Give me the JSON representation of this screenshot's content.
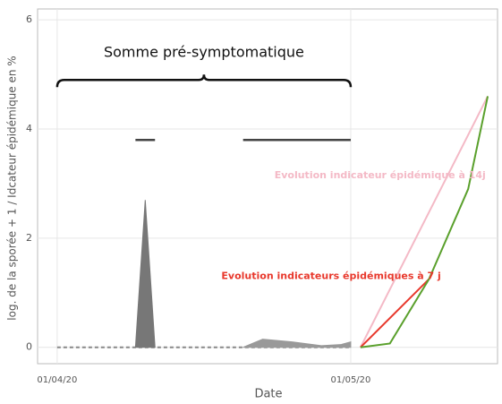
{
  "chart_data": {
    "type": "line",
    "x_label": "Date",
    "y_label": "log. de la sporée + 1 / Idcateur épidémique en %",
    "xlim": [
      "30/03/20",
      "16/05/20"
    ],
    "xticks": [
      "01/04/20",
      "01/05/20"
    ],
    "ylim": [
      -0.3,
      6.2
    ],
    "yticks": [
      0,
      2,
      4,
      6
    ],
    "grid": true,
    "series": [
      {
        "color": "#888888",
        "dashed": true,
        "fill": false,
        "x": [
          "01/04/20",
          "01/05/20"
        ],
        "values": [
          0,
          0
        ]
      },
      {
        "color": "#777777",
        "dashed": false,
        "fill": true,
        "x": [
          "09/04/20",
          "10/04/20",
          "11/04/20"
        ],
        "values": [
          0,
          2.7,
          0
        ]
      },
      {
        "color": "#999999",
        "dashed": false,
        "fill": true,
        "x": [
          "20/04/20",
          "22/04/20",
          "25/04/20",
          "28/04/20",
          "30/04/20",
          "01/05/20"
        ],
        "values": [
          0,
          0.15,
          0.1,
          0.03,
          0.05,
          0.1
        ]
      },
      {
        "color": "#f4b9c6",
        "dashed": false,
        "fill": false,
        "x": [
          "02/05/20",
          "15/05/20"
        ],
        "values": [
          0,
          4.6
        ]
      },
      {
        "color": "#e8382c",
        "dashed": false,
        "fill": false,
        "x": [
          "02/05/20",
          "09/05/20"
        ],
        "values": [
          0,
          1.25
        ]
      },
      {
        "color": "#5aa02c",
        "dashed": false,
        "fill": false,
        "x": [
          "02/05/20",
          "05/05/20",
          "09/05/20",
          "13/05/20",
          "15/05/20"
        ],
        "values": [
          0,
          0.07,
          1.25,
          2.9,
          4.6
        ]
      }
    ],
    "ranges": [
      {
        "x": [
          "09/04/20",
          "11/04/20"
        ],
        "y": 3.8
      },
      {
        "x": [
          "20/04/20",
          "01/05/20"
        ],
        "y": 3.8
      }
    ],
    "brace": {
      "x": [
        "01/04/20",
        "01/05/20"
      ],
      "y": 4.9,
      "label": "Somme pré-symptomatique"
    },
    "annotations": [
      {
        "text": "Evolution indicateur épidémique à 14j",
        "x": "04/05/20",
        "y": 3.15,
        "color": "#f4b9c6"
      },
      {
        "text": "Evolution indicateurs épidémiques à 7 j",
        "x": "29/04/20",
        "y": 1.3,
        "color": "#e8382c"
      }
    ]
  }
}
